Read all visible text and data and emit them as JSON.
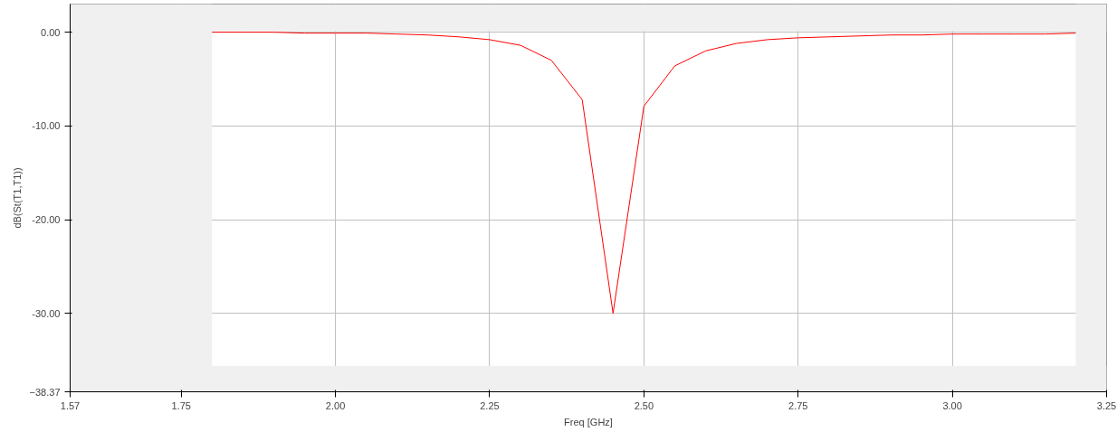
{
  "chart_data": {
    "type": "line",
    "xlabel": "Freq [GHz]",
    "ylabel": "dB(St(T1,T1))",
    "x": [
      1.8,
      1.85,
      1.9,
      1.95,
      2.0,
      2.05,
      2.1,
      2.15,
      2.2,
      2.25,
      2.3,
      2.35,
      2.4,
      2.45,
      2.5,
      2.55,
      2.6,
      2.65,
      2.7,
      2.75,
      2.8,
      2.85,
      2.9,
      2.95,
      3.0,
      3.05,
      3.1,
      3.15,
      3.2
    ],
    "series": [
      {
        "color": "#ff0000",
        "values": [
          0.0,
          0.0,
          0.0,
          -0.1,
          -0.1,
          -0.1,
          -0.2,
          -0.3,
          -0.5,
          -0.8,
          -1.4,
          -3.0,
          -7.2,
          -30.0,
          -7.9,
          -3.6,
          -2.0,
          -1.2,
          -0.8,
          -0.6,
          -0.5,
          -0.4,
          -0.3,
          -0.3,
          -0.2,
          -0.2,
          -0.2,
          -0.2,
          -0.1
        ]
      }
    ],
    "xlim": [
      1.57,
      3.25
    ],
    "ylim": [
      -38.37,
      3.0
    ],
    "xticks": [
      1.57,
      {
        "value": 1.75,
        "label": "1.75"
      },
      {
        "value": 2.0,
        "label": "2.00"
      },
      2.25,
      {
        "value": 2.5,
        "label": "2.50"
      },
      2.75,
      {
        "value": 3.0,
        "label": "3.00"
      },
      3.25
    ],
    "yticks": [
      {
        "value": 0,
        "label": "0.00"
      },
      {
        "value": -10,
        "label": "-10.00"
      },
      {
        "value": -20,
        "label": "-20.00"
      },
      {
        "value": -30,
        "label": "-30.00"
      },
      -38.37
    ],
    "bands": [
      {
        "axis": "x",
        "from": 1.57,
        "to": 1.8,
        "color": "#f0f0f0"
      },
      {
        "axis": "x",
        "from": 3.2,
        "to": 3.25,
        "color": "#f0f0f0"
      },
      {
        "axis": "y",
        "from": -38.37,
        "to": -35.6,
        "color": "#f0f0f0"
      },
      {
        "axis": "y",
        "from": 0.1,
        "to": 3.0,
        "color": "#f0f0f0"
      }
    ],
    "grid": true,
    "marker": "none",
    "line_style": "solid"
  }
}
